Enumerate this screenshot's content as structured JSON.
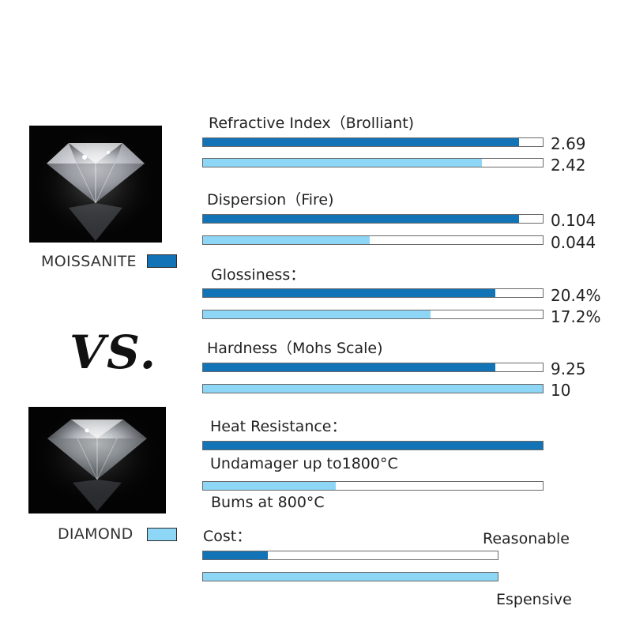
{
  "colors": {
    "moissanite": "#1273b6",
    "diamond": "#8dd6f6",
    "track_border": "#6a6a6a"
  },
  "legend": {
    "moissanite_label": "MOISSANITE",
    "diamond_label": "DIAMOND",
    "vs_label": "VS."
  },
  "chart_data": {
    "type": "bar",
    "series": [
      {
        "name": "MOISSANITE",
        "color": "#1273b6"
      },
      {
        "name": "DIAMOND",
        "color": "#8dd6f6"
      }
    ],
    "metrics": [
      {
        "title": "Refractive Index（Brolliant)",
        "bars": [
          {
            "series": "MOISSANITE",
            "fraction": 0.93,
            "label": "2.69"
          },
          {
            "series": "DIAMOND",
            "fraction": 0.82,
            "label": "2.42"
          }
        ]
      },
      {
        "title": "Dispersion（Fire)",
        "bars": [
          {
            "series": "MOISSANITE",
            "fraction": 0.93,
            "label": "0.104"
          },
          {
            "series": "DIAMOND",
            "fraction": 0.49,
            "label": "0.044"
          }
        ]
      },
      {
        "title": "Glossiness：",
        "bars": [
          {
            "series": "MOISSANITE",
            "fraction": 0.86,
            "label": "20.4%"
          },
          {
            "series": "DIAMOND",
            "fraction": 0.67,
            "label": "17.2%"
          }
        ]
      },
      {
        "title": "Hardness（Mohs Scale)",
        "bars": [
          {
            "series": "MOISSANITE",
            "fraction": 0.86,
            "label": "9.25"
          },
          {
            "series": "DIAMOND",
            "fraction": 1.0,
            "label": "10"
          }
        ]
      },
      {
        "title": "Heat Resistance：",
        "bars": [
          {
            "series": "MOISSANITE",
            "fraction": 1.0,
            "label": "Undamager up to1800°C"
          },
          {
            "series": "DIAMOND",
            "fraction": 0.39,
            "label": "Bums at 800°C"
          }
        ]
      },
      {
        "title": "Cost：",
        "bars": [
          {
            "series": "MOISSANITE",
            "fraction": 0.22,
            "label": "Reasonable"
          },
          {
            "series": "DIAMOND",
            "fraction": 1.0,
            "label": "Espensive"
          }
        ]
      }
    ]
  }
}
